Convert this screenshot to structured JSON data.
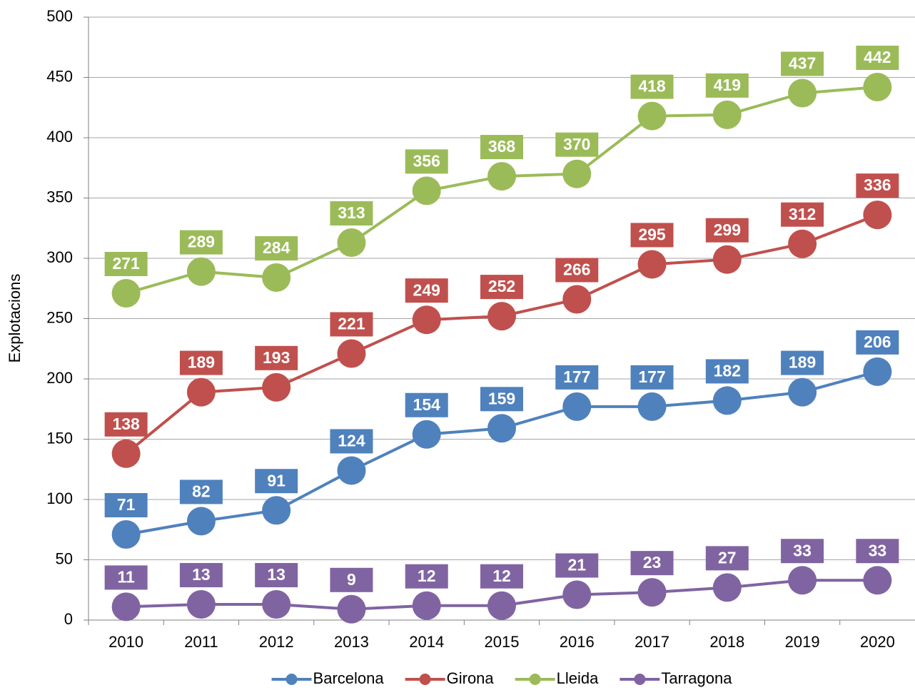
{
  "chart_data": {
    "type": "line",
    "y_label": "Explotacions",
    "categories": [
      "2010",
      "2011",
      "2012",
      "2013",
      "2014",
      "2015",
      "2016",
      "2017",
      "2018",
      "2019",
      "2020"
    ],
    "series": [
      {
        "name": "Barcelona",
        "color": "#4f81bd",
        "values": [
          71,
          82,
          91,
          124,
          154,
          159,
          177,
          177,
          182,
          189,
          206
        ]
      },
      {
        "name": "Girona",
        "color": "#c0504d",
        "values": [
          138,
          189,
          193,
          221,
          249,
          252,
          266,
          295,
          299,
          312,
          336
        ]
      },
      {
        "name": "Lleida",
        "color": "#9bbb59",
        "values": [
          271,
          289,
          284,
          313,
          356,
          368,
          370,
          418,
          419,
          437,
          442
        ]
      },
      {
        "name": "Tarragona",
        "color": "#8064a2",
        "values": [
          11,
          13,
          13,
          9,
          12,
          12,
          21,
          23,
          27,
          33,
          33
        ]
      }
    ],
    "ylim": [
      0,
      500
    ],
    "yticks": [
      0,
      50,
      100,
      150,
      200,
      250,
      300,
      350,
      400,
      450,
      500
    ],
    "grid": true,
    "legend": "bottom"
  }
}
